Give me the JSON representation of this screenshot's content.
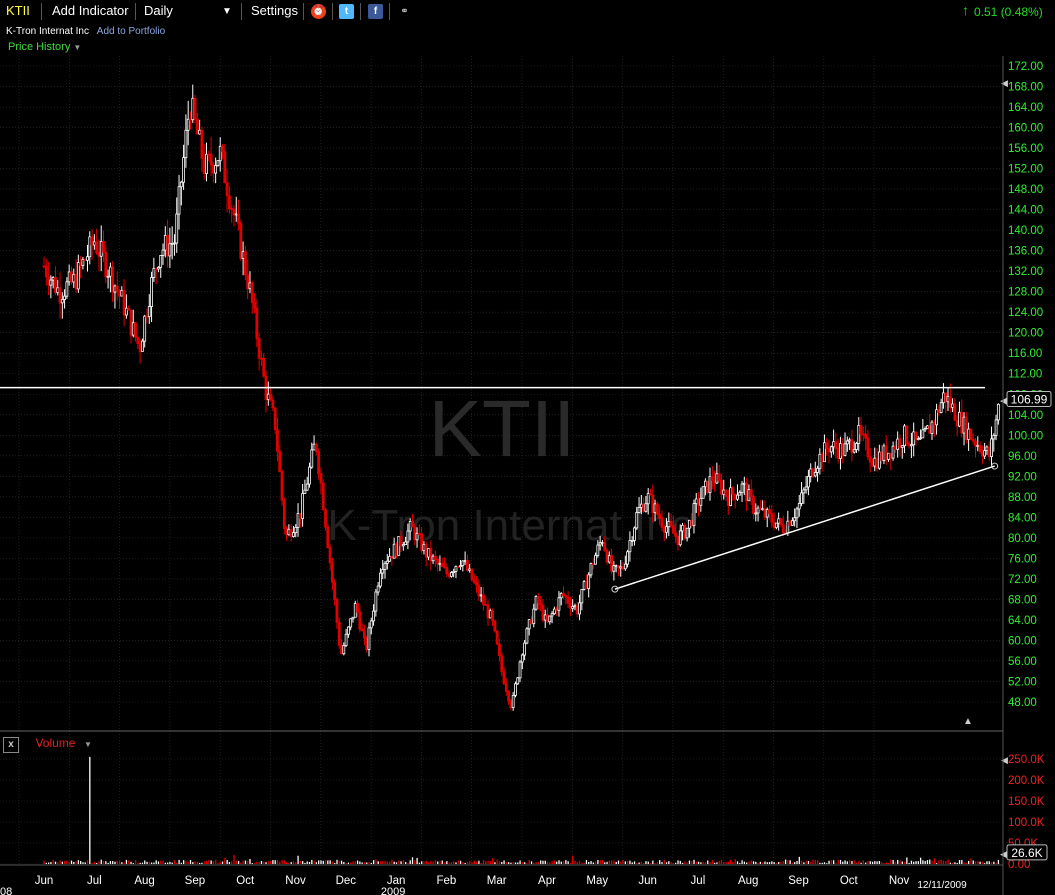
{
  "toolbar": {
    "symbol": "KTII",
    "add_indicator": "Add Indicator",
    "interval": "Daily",
    "settings": "Settings",
    "change": "0.51 (0.48%)"
  },
  "subheader": {
    "company": "K-Tron Internat Inc",
    "add_portfolio": "Add to Portfolio"
  },
  "price_history_label": "Price History",
  "volume_label": "Volume",
  "volume_close_label": "x",
  "watermark": {
    "symbol": "KTII",
    "name": "K-Tron Internat Inc"
  },
  "colors": {
    "up": "#ffffff",
    "down": "#e00000",
    "axis_price": "#33ee33",
    "axis_volume": "#ee2222",
    "background": "#000000",
    "grid": "#333333"
  },
  "chart_data": {
    "type": "candlestick",
    "price_axis": {
      "min": 45,
      "max": 174,
      "ticks": [
        48,
        52,
        56,
        60,
        64,
        68,
        72,
        76,
        80,
        84,
        88,
        92,
        96,
        100,
        104,
        108,
        112,
        116,
        120,
        124,
        128,
        132,
        136,
        140,
        144,
        148,
        152,
        156,
        160,
        164,
        168,
        172
      ]
    },
    "tick_labels": [
      "48.00",
      "52.00",
      "56.00",
      "60.00",
      "64.00",
      "68.00",
      "72.00",
      "76.00",
      "80.00",
      "84.00",
      "88.00",
      "92.00",
      "96.00",
      "100.00",
      "104.00",
      "108.00",
      "112.00",
      "116.00",
      "120.00",
      "124.00",
      "128.00",
      "132.00",
      "136.00",
      "140.00",
      "144.00",
      "148.00",
      "152.00",
      "156.00",
      "160.00",
      "164.00",
      "168.00",
      "172.00"
    ],
    "last_price": "106.99",
    "last_price_value": 106.99,
    "horizontal_line": 109.3,
    "trendline": {
      "start": {
        "month_index": 11.35,
        "price": 70
      },
      "end": {
        "month_index": 18.9,
        "price": 94
      }
    },
    "x_months": [
      "Jun",
      "Jul",
      "Aug",
      "Sep",
      "Oct",
      "Nov",
      "Dec",
      "Jan",
      "Feb",
      "Mar",
      "Apr",
      "May",
      "Jun",
      "Jul",
      "Aug",
      "Sep",
      "Oct",
      "Nov"
    ],
    "x_edge_label": "08",
    "x_year_label": "2009",
    "x_date_label": "12/11/2009",
    "price_path": [
      [
        0,
        133
      ],
      [
        0.3,
        128
      ],
      [
        0.6,
        130
      ],
      [
        1.0,
        138
      ],
      [
        1.3,
        132
      ],
      [
        1.6,
        125
      ],
      [
        1.9,
        117
      ],
      [
        2.1,
        128
      ],
      [
        2.3,
        136
      ],
      [
        2.6,
        138
      ],
      [
        2.9,
        165
      ],
      [
        3.2,
        152
      ],
      [
        3.5,
        155
      ],
      [
        3.8,
        142
      ],
      [
        4.1,
        128
      ],
      [
        4.4,
        109
      ],
      [
        4.6,
        102
      ],
      [
        4.8,
        80
      ],
      [
        5.1,
        85
      ],
      [
        5.4,
        99
      ],
      [
        5.6,
        83
      ],
      [
        5.9,
        57
      ],
      [
        6.2,
        67
      ],
      [
        6.4,
        58
      ],
      [
        6.7,
        75
      ],
      [
        7.0,
        78
      ],
      [
        7.3,
        82
      ],
      [
        7.6,
        77
      ],
      [
        8.0,
        73
      ],
      [
        8.3,
        76
      ],
      [
        8.6,
        70
      ],
      [
        8.9,
        64
      ],
      [
        9.1,
        54
      ],
      [
        9.3,
        47
      ],
      [
        9.5,
        58
      ],
      [
        9.8,
        68
      ],
      [
        10.0,
        63
      ],
      [
        10.3,
        69
      ],
      [
        10.6,
        66
      ],
      [
        10.9,
        75
      ],
      [
        11.1,
        80
      ],
      [
        11.3,
        73
      ],
      [
        11.5,
        74
      ],
      [
        11.8,
        85
      ],
      [
        12.0,
        88
      ],
      [
        12.3,
        83
      ],
      [
        12.6,
        80
      ],
      [
        12.8,
        82
      ],
      [
        13.0,
        87
      ],
      [
        13.3,
        92
      ],
      [
        13.6,
        88
      ],
      [
        13.9,
        90
      ],
      [
        14.1,
        86
      ],
      [
        14.4,
        84
      ],
      [
        14.7,
        82
      ],
      [
        15.0,
        86
      ],
      [
        15.3,
        94
      ],
      [
        15.6,
        98
      ],
      [
        15.9,
        97
      ],
      [
        16.2,
        100
      ],
      [
        16.5,
        95
      ],
      [
        16.8,
        97
      ],
      [
        17.1,
        100
      ],
      [
        17.4,
        98
      ],
      [
        17.7,
        103
      ],
      [
        17.9,
        108
      ],
      [
        18.2,
        103
      ],
      [
        18.5,
        99
      ],
      [
        18.8,
        96
      ],
      [
        19.0,
        106.99
      ]
    ],
    "volume_axis": {
      "min": 0,
      "max": 260,
      "unit": "K",
      "ticks": [
        0,
        50,
        100,
        150,
        200,
        250
      ]
    },
    "volume_tick_labels": [
      "0.00",
      "50.0K",
      "100.0K",
      "150.0K",
      "200.0K",
      "250.0K"
    ],
    "last_volume": "26.6K",
    "last_volume_value": 26.6,
    "volume_spike": {
      "month_index": 0.9,
      "value": 255
    }
  }
}
